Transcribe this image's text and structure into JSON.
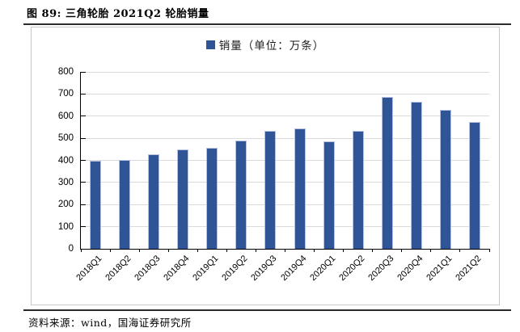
{
  "figure": {
    "title": "图 89:  三角轮胎 2021Q2 轮胎销量",
    "source": "资料来源：wind，国海证券研究所"
  },
  "chart_data": {
    "type": "bar",
    "title": "",
    "legend_label": "销量（单位：万条）",
    "legend_position": "top-center",
    "categories": [
      "2018Q1",
      "2018Q2",
      "2018Q3",
      "2018Q4",
      "2019Q1",
      "2019Q2",
      "2019Q3",
      "2019Q4",
      "2020Q1",
      "2020Q2",
      "2020Q3",
      "2020Q4",
      "2021Q1",
      "2021Q2"
    ],
    "series": [
      {
        "name": "销量（单位：万条）",
        "values": [
          398,
          401,
          428,
          451,
          457,
          491,
          532,
          546,
          485,
          533,
          687,
          664,
          627,
          573
        ]
      }
    ],
    "xlabel": "",
    "ylabel": "",
    "ylim": [
      0,
      800
    ],
    "yticks": [
      0,
      100,
      200,
      300,
      400,
      500,
      600,
      700,
      800
    ],
    "grid": true
  },
  "colors": {
    "bar_fill": "#2F5597",
    "bar_border": "#b6c2e2",
    "gridline": "#dadada",
    "axis": "#000000",
    "frame_border": "#c8c8c8",
    "rule": "#2b2b2b",
    "text": "#000000"
  }
}
